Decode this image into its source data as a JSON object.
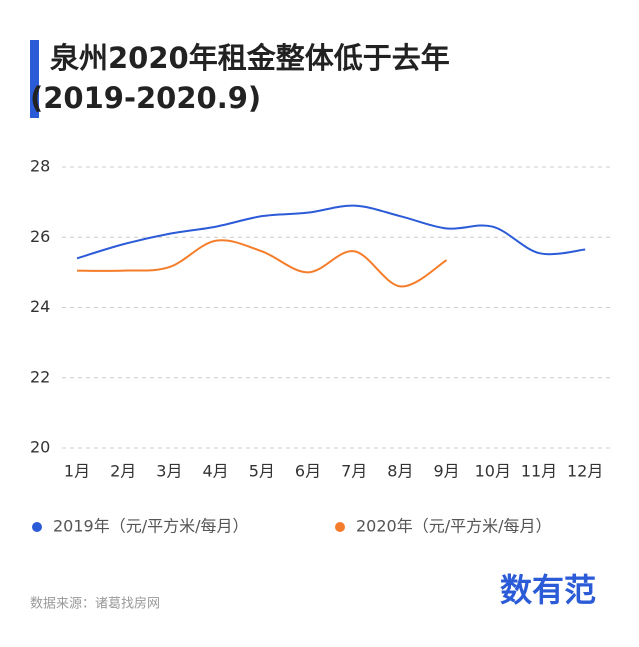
{
  "chart_data": {
    "type": "line",
    "title": "泉州2020年租金整体低于去年",
    "subtitle": "(2019-2020.9)",
    "categories": [
      "1月",
      "2月",
      "3月",
      "4月",
      "5月",
      "6月",
      "7月",
      "8月",
      "9月",
      "10月",
      "11月",
      "12月"
    ],
    "series": [
      {
        "name": "2019年（元/平方米/每月）",
        "color": "#2b5bd7",
        "values": [
          25.4,
          25.8,
          26.1,
          26.3,
          26.6,
          26.7,
          26.9,
          26.6,
          26.25,
          26.3,
          25.55,
          25.65
        ]
      },
      {
        "name": "2020年（元/平方米/每月）",
        "color": "#f57d2a",
        "values": [
          25.05,
          25.05,
          25.15,
          25.9,
          25.6,
          25.0,
          25.6,
          24.6,
          25.35,
          null,
          null,
          null
        ]
      }
    ],
    "ylim": [
      20,
      28
    ],
    "yticks": [
      20,
      22,
      24,
      26,
      28
    ],
    "grid": true,
    "source": "数据来源：诸葛找房网",
    "logo": "数有范"
  }
}
